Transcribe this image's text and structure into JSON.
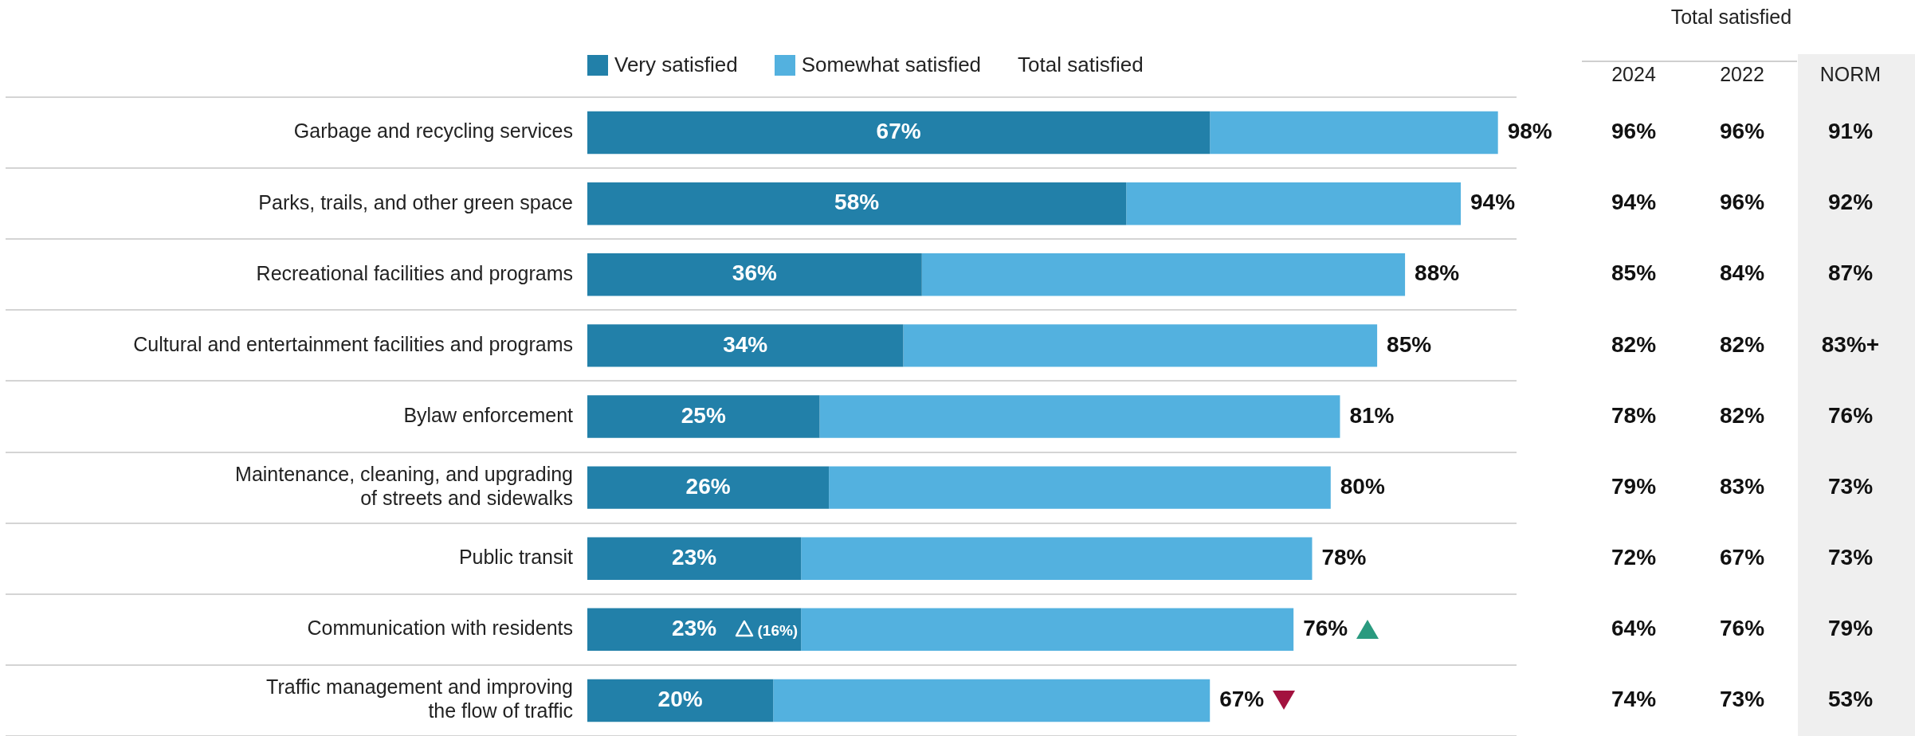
{
  "chart_data": [
    {
      "type": "bar",
      "orientation": "horizontal",
      "stacked": true,
      "legend": "top",
      "grid": "y",
      "tick_labels": "y",
      "xlim": [
        0,
        100
      ],
      "categories": [
        "Garbage and recycling services",
        "Parks, trails, and other green space",
        "Recreational facilities and programs",
        "Cultural and entertainment facilities and programs",
        "Bylaw enforcement",
        "Maintenance, cleaning, and upgrading\nof streets and sidewalks",
        "Public transit",
        "Communication with residents",
        "Traffic management and improving\nthe flow of traffic"
      ],
      "series": [
        {
          "name": "Very satisfied",
          "color": "#2280a9",
          "values": [
            67,
            58,
            36,
            34,
            25,
            26,
            23,
            23,
            20
          ],
          "value_labels": [
            "67%",
            "58%",
            "36%",
            "34%",
            "25%",
            "26%",
            "23%",
            "23%",
            "20%"
          ]
        },
        {
          "name": "Somewhat satisfied",
          "color": "#53b1df",
          "values": [
            31,
            36,
            52,
            51,
            56,
            54,
            55,
            53,
            47
          ]
        }
      ],
      "totals": [
        "98%",
        "94%",
        "88%",
        "85%",
        "81%",
        "80%",
        "78%",
        "76%",
        "67%"
      ],
      "annotations": [
        "Total satisfied",
        {
          "text": "(16%)",
          "x": 23,
          "y": "Communication with residents"
        }
      ]
    },
    {
      "type": "other",
      "title": "Total satisfied",
      "categories": [
        "2024",
        "2022",
        "NORM"
      ],
      "annotations": [
        "96%",
        "96%",
        "91%",
        "94%",
        "96%",
        "92%",
        "85%",
        "84%",
        "87%",
        "82%",
        "82%",
        "83%+",
        "78%",
        "82%",
        "76%",
        "79%",
        "83%",
        "73%",
        "72%",
        "67%",
        "73%",
        "64%",
        "76%",
        "79%",
        "74%",
        "73%",
        "53%"
      ]
    }
  ]
}
